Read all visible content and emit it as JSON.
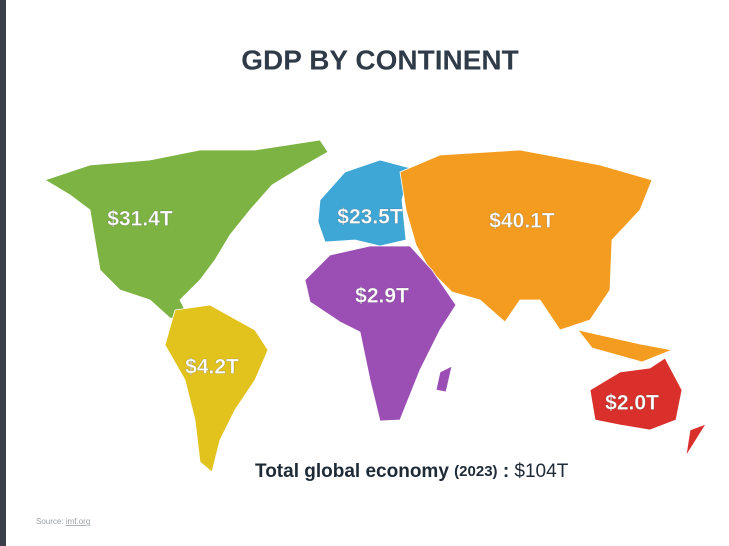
{
  "title": "GDP BY CONTINENT",
  "regions": [
    {
      "label": "$31.4T",
      "color": "#7cb342"
    },
    {
      "label": "$23.5T",
      "color": "#3fa7d6"
    },
    {
      "label": "$40.1T",
      "color": "#f39c1f"
    },
    {
      "label": "$2.9T",
      "color": "#9b4fb5"
    },
    {
      "label": "$4.2T",
      "color": "#e2c21c"
    },
    {
      "label": "$2.0T",
      "color": "#d9302c"
    }
  ],
  "total": {
    "text": "Total global economy",
    "year": "(2023)",
    "separator": ":",
    "value": "$104T"
  },
  "source": {
    "prefix": "Source:",
    "link": "imf.org"
  }
}
